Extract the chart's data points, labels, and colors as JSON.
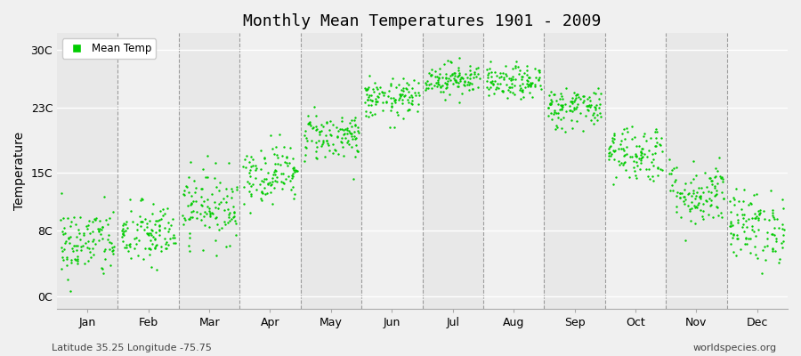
{
  "title": "Monthly Mean Temperatures 1901 - 2009",
  "ylabel": "Temperature",
  "ytick_labels": [
    "0C",
    "8C",
    "15C",
    "23C",
    "30C"
  ],
  "ytick_values": [
    0,
    8,
    15,
    23,
    30
  ],
  "ylim": [
    -1.5,
    32
  ],
  "months": [
    "Jan",
    "Feb",
    "Mar",
    "Apr",
    "May",
    "Jun",
    "Jul",
    "Aug",
    "Sep",
    "Oct",
    "Nov",
    "Dec"
  ],
  "dot_color": "#00CC00",
  "dot_size": 3,
  "footer_left": "Latitude 35.25 Longitude -75.75",
  "footer_right": "worldspecies.org",
  "legend_label": "Mean Temp",
  "monthly_mean": [
    6.5,
    7.5,
    11.0,
    15.0,
    19.5,
    24.0,
    26.5,
    26.0,
    23.0,
    17.5,
    12.5,
    8.5
  ],
  "monthly_std": [
    2.2,
    2.0,
    2.2,
    1.8,
    1.5,
    1.2,
    1.0,
    1.0,
    1.3,
    1.8,
    2.0,
    2.2
  ],
  "n_years": 109,
  "seed": 42,
  "fig_bg": "#f0f0f0",
  "band_colors": [
    "#e8e8e8",
    "#f0f0f0"
  ],
  "grid_color": "#ffffff",
  "vline_color": "#888888"
}
